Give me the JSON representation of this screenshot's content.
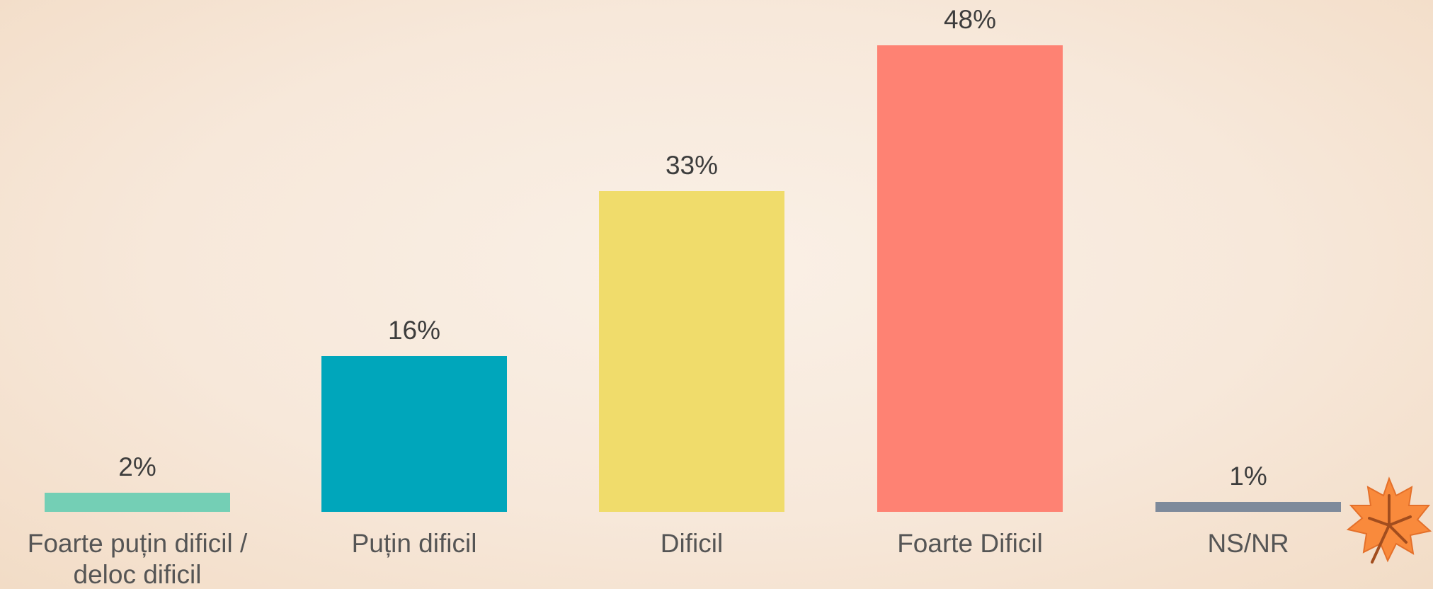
{
  "chart_data": {
    "type": "bar",
    "categories": [
      "Foarte puțin dificil / deloc dificil",
      "Puțin dificil",
      "Dificil",
      "Foarte Dificil",
      "NS/NR"
    ],
    "values": [
      2,
      16,
      33,
      48,
      1
    ],
    "value_labels": [
      "2%",
      "16%",
      "33%",
      "48%",
      "1%"
    ],
    "colors": [
      "#74cfb5",
      "#00a6bb",
      "#f0dc6b",
      "#fe8273",
      "#7e8a9b"
    ]
  }
}
